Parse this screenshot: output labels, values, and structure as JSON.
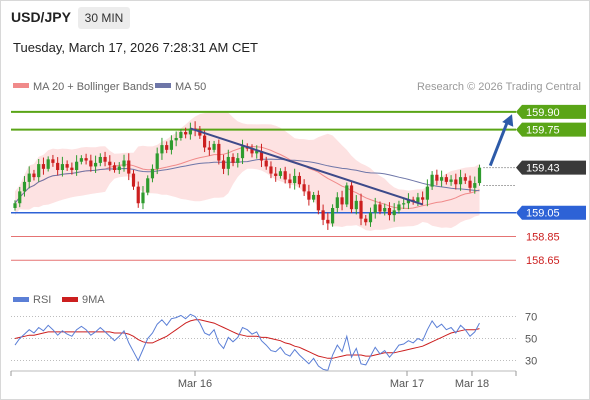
{
  "header": {
    "symbol": "USD/JPY",
    "timeframe": "30 MIN",
    "datetime": "Tuesday, March 17, 2026 7:28:31 AM CET"
  },
  "legend": {
    "ma20_label": "MA 20 + Bollinger Bands",
    "ma50_label": "MA 50",
    "credit": "Research © 2026 Trading Central",
    "rsi_label": "RSI",
    "rsi_ma_label": "9MA"
  },
  "colors": {
    "candle_up": "#2e9b2e",
    "candle_down": "#cc1f1f",
    "bollinger_fill": "#fde2e2",
    "ma20": "#f08a8a",
    "ma50": "#6e76a8",
    "resistance": "#5aa517",
    "support": "#2d62d6",
    "support_red": "#e57373",
    "trendline": "#3d4a8a",
    "arrow": "#2d5aa8",
    "rsi": "#5b7fd6",
    "rsi_ma": "#cc1f1f"
  },
  "chart_data": [
    {
      "type": "candlestick",
      "title": "USD/JPY 30 MIN",
      "x_ticks": [
        "Mar 16",
        "Mar 17",
        "Mar 18"
      ],
      "ylim": [
        158.5,
        160.0
      ],
      "current_price": 159.43,
      "levels": [
        {
          "value": 159.9,
          "label": "159.90",
          "role": "resistance"
        },
        {
          "value": 159.75,
          "label": "159.75",
          "role": "resistance"
        },
        {
          "value": 159.43,
          "label": "159.43",
          "role": "last"
        },
        {
          "value": 159.05,
          "label": "159.05",
          "role": "support"
        },
        {
          "value": 158.85,
          "label": "158.85",
          "role": "support"
        },
        {
          "value": 158.65,
          "label": "158.65",
          "role": "support"
        }
      ],
      "trendline": {
        "start": {
          "bar": 37,
          "price": 159.76
        },
        "end": {
          "bar": 86,
          "price": 159.12
        }
      },
      "arrow": {
        "start": {
          "bar": 99,
          "price": 159.43
        },
        "end_price": 159.88
      },
      "closes": [
        159.13,
        159.23,
        159.31,
        159.38,
        159.35,
        159.46,
        159.42,
        159.5,
        159.47,
        159.41,
        159.46,
        159.43,
        159.41,
        159.48,
        159.51,
        159.49,
        159.44,
        159.47,
        159.52,
        159.48,
        159.45,
        159.41,
        159.44,
        159.49,
        159.38,
        159.27,
        159.13,
        159.22,
        159.34,
        159.42,
        159.55,
        159.62,
        159.58,
        159.66,
        159.68,
        159.73,
        159.71,
        159.76,
        159.75,
        159.7,
        159.6,
        159.58,
        159.63,
        159.49,
        159.42,
        159.52,
        159.47,
        159.51,
        159.61,
        159.59,
        159.55,
        159.57,
        159.49,
        159.44,
        159.38,
        159.36,
        159.4,
        159.33,
        159.3,
        159.36,
        159.29,
        159.23,
        159.16,
        159.2,
        159.07,
        158.99,
        158.96,
        159.09,
        159.18,
        159.12,
        159.28,
        159.08,
        159.15,
        159.0,
        158.97,
        159.05,
        159.12,
        159.06,
        159.09,
        159.03,
        159.07,
        159.12,
        159.13,
        159.16,
        159.14,
        159.18,
        159.16,
        159.27,
        159.37,
        159.32,
        159.35,
        159.31,
        159.33,
        159.29,
        159.35,
        159.32,
        159.26,
        159.3,
        159.43
      ]
    },
    {
      "type": "line",
      "title": "RSI",
      "ylim": [
        25,
        75
      ],
      "y_ticks": [
        70,
        50,
        30
      ],
      "series": [
        {
          "name": "RSI",
          "values": [
            44,
            50,
            54,
            58,
            55,
            60,
            57,
            62,
            58,
            53,
            57,
            54,
            52,
            58,
            61,
            58,
            53,
            56,
            60,
            56,
            52,
            48,
            52,
            57,
            46,
            38,
            30,
            40,
            50,
            55,
            63,
            67,
            62,
            68,
            69,
            71,
            68,
            72,
            70,
            64,
            55,
            53,
            58,
            46,
            41,
            51,
            47,
            51,
            60,
            58,
            54,
            56,
            48,
            44,
            39,
            38,
            42,
            36,
            34,
            40,
            35,
            31,
            27,
            32,
            25,
            22,
            21,
            35,
            44,
            38,
            52,
            33,
            41,
            27,
            26,
            34,
            42,
            36,
            39,
            33,
            38,
            44,
            45,
            48,
            46,
            50,
            48,
            58,
            66,
            60,
            63,
            58,
            60,
            55,
            62,
            58,
            52,
            56,
            64
          ]
        },
        {
          "name": "9MA",
          "values": [
            50,
            51,
            52,
            53,
            53,
            54,
            55,
            56,
            56,
            56,
            56,
            56,
            56,
            56,
            56,
            56,
            56,
            56,
            56,
            56,
            56,
            55,
            55,
            55,
            54,
            52,
            49,
            47,
            46,
            46,
            48,
            50,
            52,
            55,
            58,
            61,
            64,
            66,
            67,
            67,
            66,
            65,
            64,
            62,
            60,
            58,
            56,
            54,
            53,
            52,
            52,
            52,
            51,
            51,
            50,
            49,
            48,
            46,
            45,
            43,
            42,
            40,
            38,
            36,
            34,
            33,
            32,
            32,
            33,
            34,
            35,
            35,
            35,
            35,
            34,
            34,
            35,
            36,
            37,
            37,
            37,
            38,
            39,
            40,
            41,
            42,
            43,
            45,
            47,
            49,
            51,
            53,
            55,
            56,
            57,
            58,
            58,
            58,
            59
          ]
        }
      ]
    }
  ]
}
